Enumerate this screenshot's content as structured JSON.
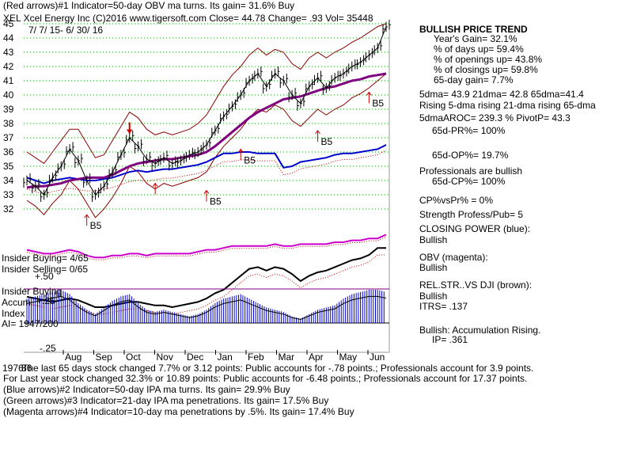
{
  "header": {
    "line1": "(Red arrows)#1 Indicator=50-day OBV ma turns. Its gain= 31.6% Buy",
    "line2": "XEL  Xcel Energy Inc  (C)2016 www.tigersoft.com     Close=  44.78  Change= .93 Vol= 35448",
    "daterange": "7/ 7/ 15-  6/ 30/ 16"
  },
  "side_panel": [
    {
      "text": "BULLISH PRICE TREND",
      "bold": true
    },
    {
      "text": "Year's Gain= 32.1%"
    },
    {
      "text": "% of days up= 59.4%"
    },
    {
      "text": "% of openings up= 43.8%"
    },
    {
      "text": "% of closings up= 59.8%"
    },
    {
      "text": "65-day gain= 7.7%"
    },
    {
      "text": "5dma= 43.9  21dma= 42.8  65dma=41.4"
    },
    {
      "text": "Rising 5-dma  rising 21-dma  rising 65-dma"
    },
    {
      "text": "5dmaAROC= 239.3 %  PivotP= 43.3"
    },
    {
      "text": "65d-PR%= 100%"
    },
    {
      "text": "65d-OP%= 19.7%"
    },
    {
      "text": "Professionals are bullish"
    },
    {
      "text": "65d-CP%= 100%"
    },
    {
      "text": "CP%vsPr% =  0%"
    },
    {
      "text": "Strength Profess/Pub= 5"
    },
    {
      "text": "CLOSING POWER (blue):"
    },
    {
      "text": "Bullish"
    },
    {
      "text": "OBV (magenta):"
    },
    {
      "text": "Bullish"
    },
    {
      "text": "REL.STR..VS DJI (brown):"
    },
    {
      "text": "Bullish"
    },
    {
      "text": "ITRS= .137"
    },
    {
      "text": "Bullish: Accumulation Rising."
    },
    {
      "text": "IP=  .361"
    }
  ],
  "left_labels": {
    "insider_buying": "Insider Buying= 4/65",
    "insider_selling": "Insider Selling= 0/65",
    "plus50": "+.50",
    "insider_buying2": "Insider Buying",
    "accum": "Accum",
    "plus25": "+.25",
    "index": "Index",
    "ai": "AI= 1947/200",
    "minus25": "-.25",
    "year": "1976",
    "overlap": "86"
  },
  "footer": [
    "The last 65 days stock changed  7.7% or  3.12 points:  Public accounts for -.78 points.;  Professionals account for  3.9 points.",
    "For Last year stock changed  32.3% or  10.89 points:  Public accounts for -6.48 points.;  Professionals account for  17.37 points.",
    "(Blue arrows)#2 Indicator=50-day IPA ma turns. Its gain= 29.9% Buy",
    "(Green arrows)#3 Indicator=21-day IPA ma penetrations. Its gain= 17.5% Buy",
    "(Magenta arrows)#4 Indicator=10-day ma penetrations by .5%. Its gain= 17.4% Buy"
  ],
  "colors": {
    "price": "#000000",
    "band": "#8b0000",
    "ma65": "#800080",
    "ma21_dotted": "#cc0000",
    "closing_power": "#0000cc",
    "obv": "#cc00cc",
    "obv_ma": "#cc0000",
    "relstr": "#000000",
    "accum_bars": "#0000cc",
    "grid": "#00aa00",
    "arrows": "#cc0000",
    "border": "#999999"
  },
  "chart_data": {
    "type": "line",
    "title": "XEL  Xcel Energy Inc",
    "xlabel": "",
    "ylabel": "",
    "ylim": [
      31,
      45.5
    ],
    "y_ticks": [
      32,
      33,
      34,
      35,
      36,
      37,
      38,
      39,
      40,
      41,
      42,
      43,
      44,
      45
    ],
    "x_ticks": [
      "Aug",
      "Sep",
      "Oct",
      "Nov",
      "Dec",
      "Jan",
      "Feb",
      "Mar",
      "Apr",
      "May",
      "Jun"
    ],
    "series": [
      {
        "values": [
          34.0,
          33.6,
          33.0,
          34.2,
          35.0,
          36.2,
          35.4,
          34.0,
          33.0,
          33.6,
          34.6,
          35.8,
          37.0,
          36.4,
          35.5,
          35.2,
          35.6,
          35.2,
          35.4,
          35.8,
          36.0,
          36.5,
          37.5,
          38.5,
          39.2,
          40.0,
          41.0,
          41.5,
          40.6,
          41.5,
          41.0,
          40.0,
          39.4,
          40.6,
          41.2,
          40.5,
          41.2,
          41.5,
          42.0,
          42.3,
          42.8,
          43.3,
          44.78
        ]
      },
      {
        "values": [
          33.5,
          33.6,
          33.6,
          33.7,
          33.8,
          34.0,
          34.1,
          34.2,
          34.2,
          34.2,
          34.4,
          34.7,
          35.0,
          35.2,
          35.3,
          35.4,
          35.5,
          35.5,
          35.6,
          35.7,
          35.8,
          36.0,
          36.4,
          36.9,
          37.4,
          37.9,
          38.4,
          38.8,
          39.1,
          39.4,
          39.7,
          39.8,
          39.9,
          40.1,
          40.3,
          40.5,
          40.6,
          40.8,
          41.0,
          41.1,
          41.3,
          41.4,
          41.5
        ]
      }
    ],
    "band_upper": [
      36.0,
      35.6,
      35.2,
      36.0,
      36.8,
      37.6,
      37.6,
      36.6,
      35.6,
      35.8,
      36.8,
      37.8,
      38.8,
      38.4,
      37.6,
      37.2,
      37.4,
      37.2,
      37.4,
      37.6,
      38.0,
      38.6,
      39.6,
      40.6,
      41.4,
      42.0,
      42.8,
      43.3,
      42.8,
      43.2,
      43.0,
      42.2,
      41.8,
      42.6,
      43.0,
      42.6,
      43.0,
      43.3,
      43.7,
      44.0,
      44.4,
      44.8,
      45.0
    ],
    "band_lower": [
      32.6,
      32.2,
      31.6,
      32.4,
      33.0,
      34.0,
      33.4,
      32.4,
      31.4,
      32.0,
      32.8,
      33.8,
      35.0,
      34.6,
      33.8,
      33.4,
      33.8,
      33.6,
      33.8,
      34.0,
      34.2,
      34.6,
      35.6,
      36.4,
      37.0,
      37.6,
      38.4,
      39.0,
      38.8,
      39.3,
      39.0,
      38.2,
      37.8,
      38.4,
      39.0,
      38.6,
      39.0,
      39.3,
      39.8,
      40.1,
      40.5,
      41.0,
      41.5
    ],
    "arrow_annotations": [
      {
        "label": "B5",
        "x_index": 7,
        "price": 31.6,
        "dir": "up"
      },
      {
        "label": "",
        "x_index": 12,
        "price": 37.3,
        "dir": "down"
      },
      {
        "label": "",
        "x_index": 15,
        "price": 33.8,
        "dir": "up"
      },
      {
        "label": "B5",
        "x_index": 21,
        "price": 33.3,
        "dir": "up"
      },
      {
        "label": "B5",
        "x_index": 25,
        "price": 36.2,
        "dir": "up"
      },
      {
        "label": "B5",
        "x_index": 34,
        "price": 37.5,
        "dir": "up"
      },
      {
        "label": "B5",
        "x_index": 40,
        "price": 40.2,
        "dir": "up"
      }
    ],
    "closing_power_scaled": [
      34.2,
      34.0,
      33.8,
      34.0,
      34.1,
      34.2,
      34.1,
      34.0,
      34.0,
      34.1,
      34.2,
      34.4,
      34.6,
      34.7,
      34.6,
      34.7,
      34.8,
      34.8,
      34.9,
      35.0,
      35.1,
      35.3,
      35.6,
      35.9,
      35.9,
      36.0,
      36.0,
      35.9,
      35.9,
      35.9,
      34.9,
      35.0,
      35.3,
      35.4,
      35.5,
      35.6,
      35.8,
      35.9,
      35.9,
      36.0,
      36.1,
      36.2,
      36.5
    ]
  },
  "subcharts": {
    "obv": [
      64,
      63,
      62,
      62,
      63,
      64,
      63,
      61,
      60,
      60,
      61,
      61,
      62,
      62,
      61,
      62,
      62,
      62,
      62,
      62,
      63,
      64,
      64,
      65,
      66,
      66,
      66,
      66,
      66,
      67,
      66,
      66,
      67,
      67,
      67,
      67,
      68,
      68,
      69,
      69,
      70,
      70,
      72
    ],
    "relstr": [
      58,
      57,
      56,
      55,
      56,
      57,
      56,
      54,
      52,
      52,
      53,
      54,
      55,
      55,
      54,
      53,
      53,
      52,
      53,
      54,
      55,
      57,
      60,
      62,
      66,
      70,
      74,
      75,
      73,
      75,
      74,
      71,
      67,
      70,
      72,
      73,
      75,
      77,
      79,
      80,
      82,
      86,
      86
    ],
    "accum": [
      0.22,
      0.24,
      0.26,
      0.28,
      0.3,
      0.26,
      0.18,
      0.12,
      0.08,
      0.14,
      0.2,
      0.24,
      0.26,
      0.18,
      0.12,
      0.1,
      0.12,
      0.1,
      0.08,
      0.06,
      0.08,
      0.12,
      0.18,
      0.22,
      0.24,
      0.26,
      0.22,
      0.18,
      0.14,
      0.12,
      0.1,
      0.06,
      0.04,
      0.08,
      0.12,
      0.14,
      0.16,
      0.22,
      0.26,
      0.28,
      0.3,
      0.3,
      0.28
    ]
  }
}
